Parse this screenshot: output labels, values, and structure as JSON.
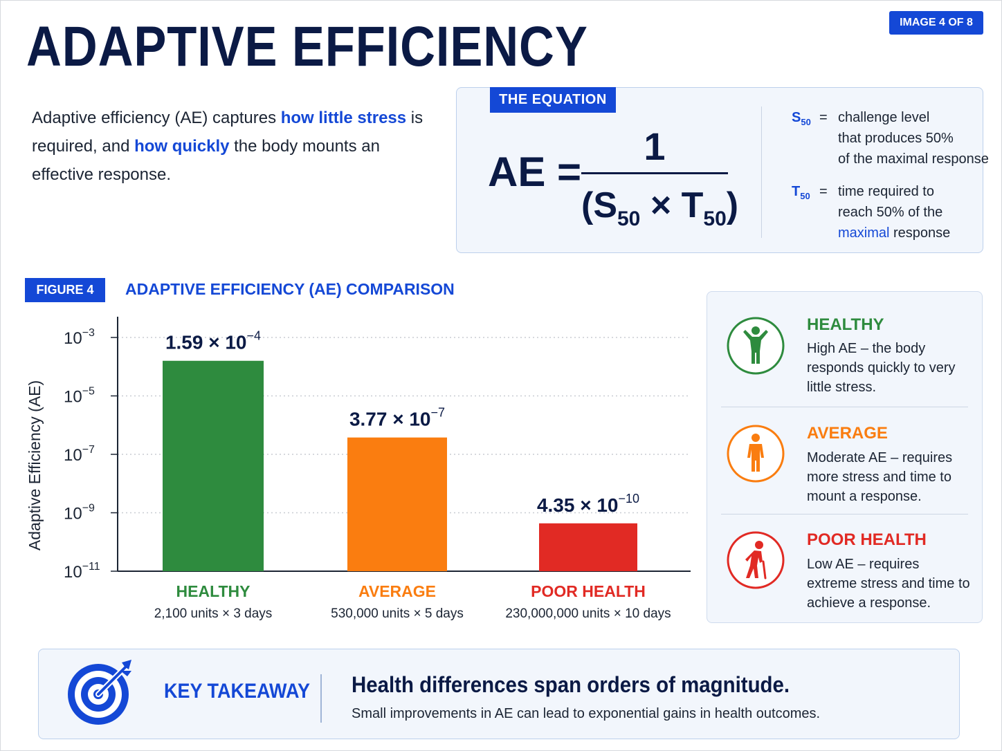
{
  "header": {
    "title": "ADAPTIVE EFFICIENCY",
    "badge": "IMAGE 4 OF 8"
  },
  "intro": {
    "part1": "Adaptive efficiency (AE) captures ",
    "hl1": "how little stress",
    "part2": " is required, and ",
    "hl2": "how quickly",
    "part3": " the body mounts an effective response."
  },
  "equation": {
    "tag": "THE EQUATION",
    "lhs": "AE =",
    "numerator": "1",
    "den_open": "(S",
    "den_sub1": "50",
    "den_times": " × T",
    "den_sub2": "50",
    "den_close": ")",
    "defs": [
      {
        "sym": "S",
        "sub": "50",
        "eq": "=",
        "line1": "challenge level",
        "line2": "that produces 50%",
        "line3": "of the maximal response",
        "line3_hl": ""
      },
      {
        "sym": "T",
        "sub": "50",
        "eq": "=",
        "line1": "time required to",
        "line2": "reach 50% of the",
        "line3": " response",
        "line3_hl": "maximal"
      }
    ]
  },
  "figure": {
    "tag": "FIGURE 4",
    "title": "ADAPTIVE EFFICIENCY (AE) COMPARISON"
  },
  "chart_data": {
    "type": "bar",
    "title": "ADAPTIVE EFFICIENCY (AE) COMPARISON",
    "ylabel": "Adaptive Efficiency (AE)",
    "yscale": "log",
    "ylim": [
      1e-11,
      0.001
    ],
    "yticks": [
      {
        "value": 0.001,
        "base": "10",
        "exp": "−3"
      },
      {
        "value": 1e-05,
        "base": "10",
        "exp": "−5"
      },
      {
        "value": 1e-07,
        "base": "10",
        "exp": "−7"
      },
      {
        "value": 1e-09,
        "base": "10",
        "exp": "−9"
      },
      {
        "value": 1e-11,
        "base": "10",
        "exp": "−11"
      }
    ],
    "grid": "horizontal-dotted",
    "categories": [
      "HEALTHY",
      "AVERAGE",
      "POOR HEALTH"
    ],
    "subcaptions": [
      "2,100 units × 3 days",
      "530,000 units × 5 days",
      "230,000,000 units × 10 days"
    ],
    "values": [
      0.000159,
      3.77e-07,
      4.35e-10
    ],
    "value_labels": [
      {
        "mantissa": "1.59 × 10",
        "exp": "−4"
      },
      {
        "mantissa": "3.77 × 10",
        "exp": "−7"
      },
      {
        "mantissa": "4.35 × 10",
        "exp": "−10"
      }
    ],
    "colors": [
      "#2e8b3e",
      "#fa7d10",
      "#e12a24"
    ]
  },
  "legend": [
    {
      "title": "HEALTHY",
      "desc": "High AE – the body responds quickly to very little stress.",
      "color": "#2e8b3e",
      "icon": "healthy-person-icon"
    },
    {
      "title": "AVERAGE",
      "desc": "Moderate AE – requires more stress and time to mount a response.",
      "color": "#fa7d10",
      "icon": "standing-person-icon"
    },
    {
      "title": "POOR HEALTH",
      "desc": "Low AE – requires extreme stress and time to achieve a response.",
      "color": "#e12a24",
      "icon": "elderly-person-icon"
    }
  ],
  "takeaway": {
    "label": "KEY TAKEAWAY",
    "headline": "Health differences span orders of magnitude.",
    "sub": "Small improvements in AE can lead to exponential gains in health outcomes.",
    "icon": "target-icon"
  },
  "colors": {
    "accent": "#1448d6",
    "navy": "#0b1a45"
  }
}
